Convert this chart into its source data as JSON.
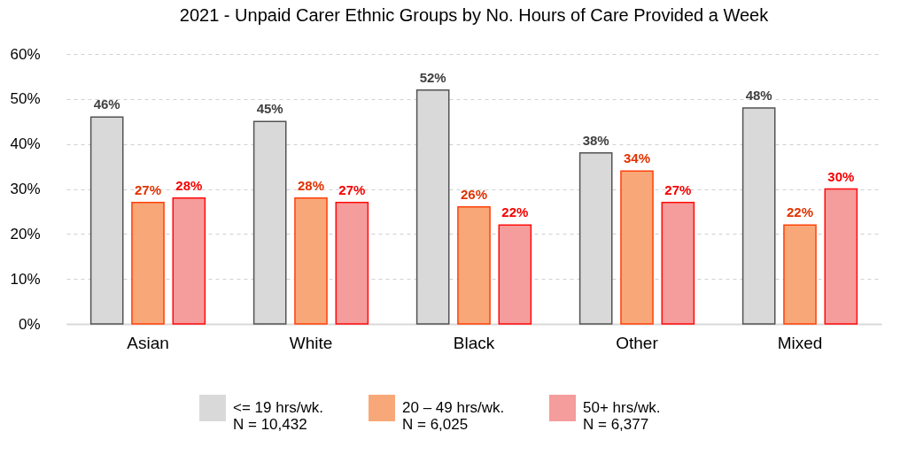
{
  "chart_data": {
    "type": "bar",
    "title": "2021 - Unpaid Carer Ethnic Groups by No. Hours of Care Provided a Week",
    "categories": [
      "Asian",
      "White",
      "Black",
      "Other",
      "Mixed"
    ],
    "series": [
      {
        "name": "<= 19 hrs/wk.\nN = 10,432",
        "color": "#d9d9d9",
        "values": [
          46,
          45,
          52,
          38,
          48
        ],
        "value_labels": [
          "46%",
          "45%",
          "52%",
          "38%",
          "48%"
        ]
      },
      {
        "name": "20 – 49 hrs/wk.\nN = 6,025",
        "color": "#f8a878",
        "values": [
          27,
          28,
          26,
          34,
          22
        ],
        "value_labels": [
          "27%",
          "28%",
          "26%",
          "34%",
          "22%"
        ]
      },
      {
        "name": "50+ hrs/wk.\nN = 6,377",
        "color": "#f59c9c",
        "values": [
          28,
          27,
          22,
          27,
          30
        ],
        "value_labels": [
          "28%",
          "27%",
          "22%",
          "27%",
          "30%"
        ]
      }
    ],
    "ylim": [
      0,
      60
    ],
    "yticks": [
      {
        "value": 0,
        "label": "0%"
      },
      {
        "value": 10,
        "label": "10%"
      },
      {
        "value": 20,
        "label": "20%"
      },
      {
        "value": 30,
        "label": "30%"
      },
      {
        "value": 40,
        "label": "40%"
      },
      {
        "value": 50,
        "label": "50%"
      },
      {
        "value": 60,
        "label": "60%"
      }
    ],
    "grid": "y",
    "legend": "bottom"
  }
}
